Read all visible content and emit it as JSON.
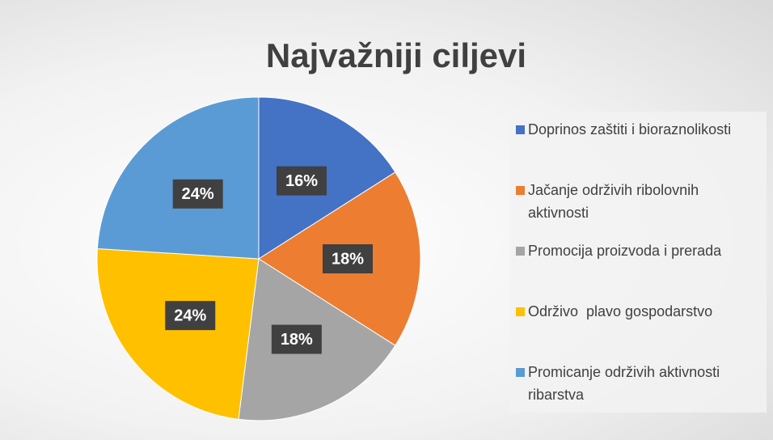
{
  "chart_data": {
    "type": "pie",
    "title": "Najvažniji ciljevi",
    "categories": [
      "Doprinos zaštiti i bioraznolikosti",
      "Jačanje održivih ribolovnih aktivnosti",
      "Promocija proizvoda i prerada",
      "Održivo  plavo gospodarstvo",
      "Promicanje održivih aktivnosti ribarstva"
    ],
    "values": [
      16,
      18,
      18,
      24,
      24
    ],
    "value_labels": [
      "16%",
      "18%",
      "18%",
      "24%",
      "24%"
    ],
    "colors": [
      "#4472c4",
      "#ed7d31",
      "#a5a5a5",
      "#ffc000",
      "#5b9bd5"
    ],
    "legend": "right"
  }
}
